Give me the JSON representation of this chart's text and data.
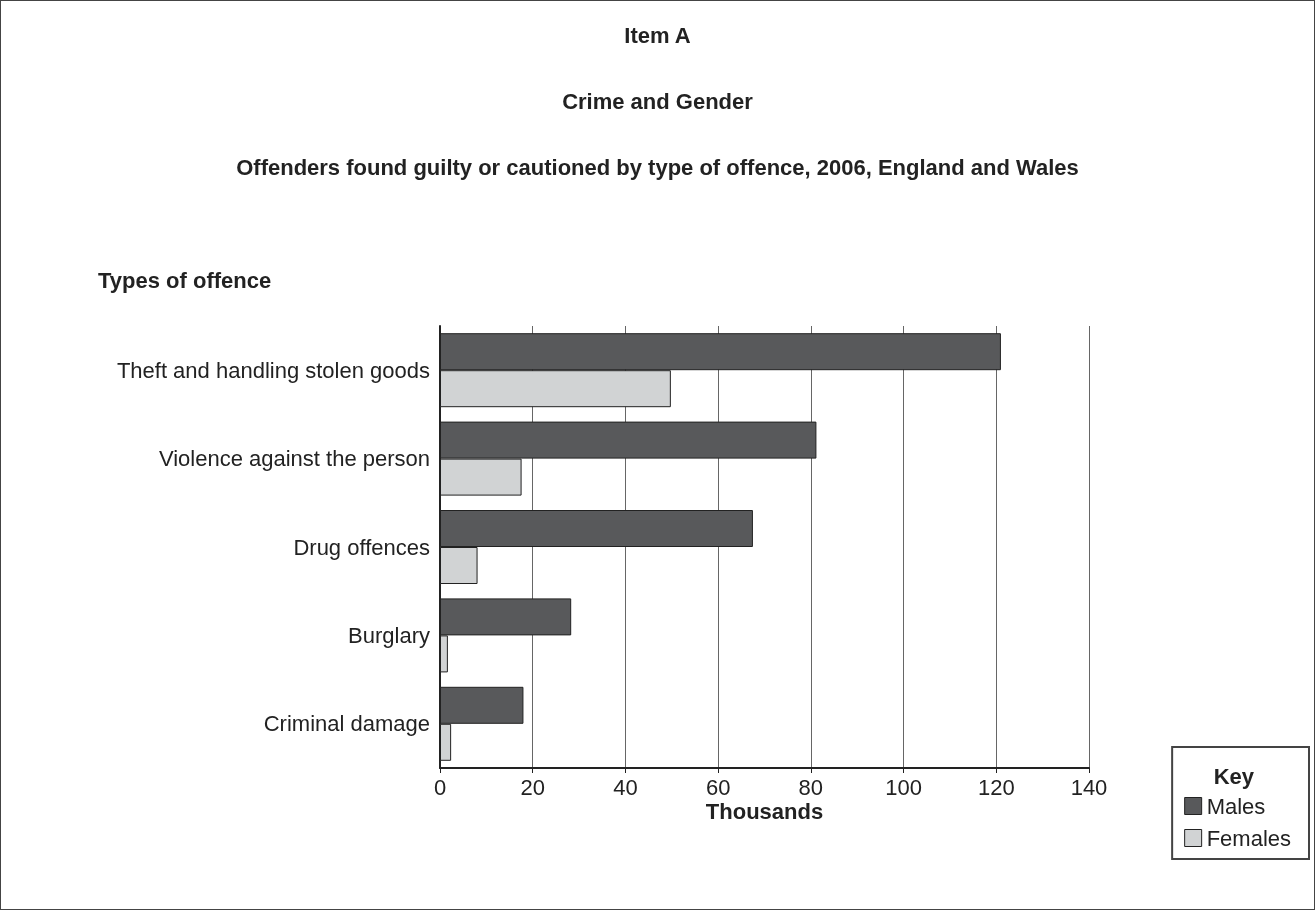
{
  "chart_data": {
    "type": "bar",
    "orientation": "horizontal",
    "title": "Crime and Gender",
    "subtitle": "Offenders found guilty or cautioned by type of offence, 2006, England and Wales",
    "annotations": [
      "Item A"
    ],
    "ylabel": "Types of offence",
    "xlabel": "Thousands",
    "legend_title": "Key",
    "legend": "bottom right",
    "categories": [
      "Theft and handling stolen goods",
      "Violence against the person",
      "Drug offences",
      "Burglary",
      "Criminal damage"
    ],
    "series": [
      {
        "name": "Males",
        "color": "#58595b",
        "values": [
          121,
          81.2,
          67.5,
          28.3,
          18
        ]
      },
      {
        "name": "Females",
        "color": "#d1d3d4",
        "values": [
          49.8,
          17.6,
          8.1,
          1.7,
          2.4
        ]
      }
    ],
    "xlim": [
      0,
      140
    ],
    "xticks": [
      0,
      20,
      40,
      60,
      80,
      100,
      120,
      140
    ],
    "grid": "x"
  }
}
